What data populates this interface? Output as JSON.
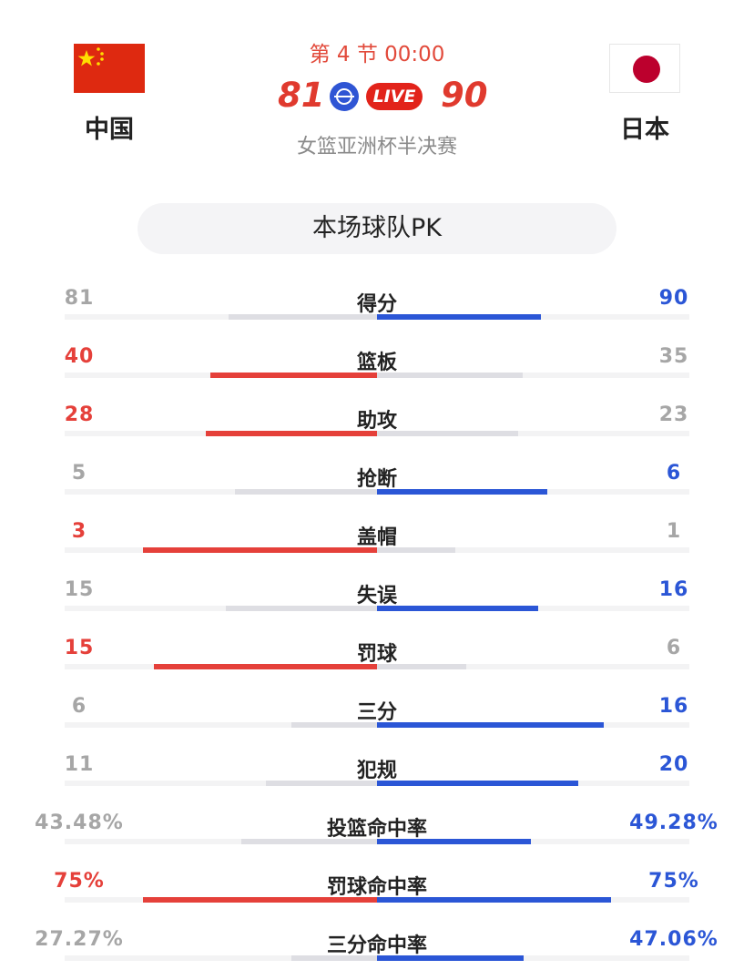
{
  "header": {
    "period": "第 4 节 00:00",
    "subtitle": "女篮亚洲杯半决赛",
    "live_label": "LIVE",
    "home": {
      "name": "中国",
      "score": "81",
      "flag_icon": "china-flag-icon"
    },
    "away": {
      "name": "日本",
      "score": "90",
      "flag_icon": "japan-flag-icon"
    }
  },
  "colors": {
    "home_win": "#e5403a",
    "away_win": "#2b56d6",
    "neutral": "#a6a6a6",
    "live_red": "#e2231a"
  },
  "pk_title": "本场球队PK",
  "stats": [
    {
      "label": "得分",
      "home": "81",
      "away": "90",
      "home_ratio": 0.474,
      "away_ratio": 0.526,
      "winner": "away"
    },
    {
      "label": "篮板",
      "home": "40",
      "away": "35",
      "home_ratio": 0.533,
      "away_ratio": 0.467,
      "winner": "home"
    },
    {
      "label": "助攻",
      "home": "28",
      "away": "23",
      "home_ratio": 0.549,
      "away_ratio": 0.451,
      "winner": "home"
    },
    {
      "label": "抢断",
      "home": "5",
      "away": "6",
      "home_ratio": 0.455,
      "away_ratio": 0.545,
      "winner": "away"
    },
    {
      "label": "盖帽",
      "home": "3",
      "away": "1",
      "home_ratio": 0.75,
      "away_ratio": 0.25,
      "winner": "home"
    },
    {
      "label": "失误",
      "home": "15",
      "away": "16",
      "home_ratio": 0.484,
      "away_ratio": 0.516,
      "winner": "away"
    },
    {
      "label": "罚球",
      "home": "15",
      "away": "6",
      "home_ratio": 0.714,
      "away_ratio": 0.286,
      "winner": "home"
    },
    {
      "label": "三分",
      "home": "6",
      "away": "16",
      "home_ratio": 0.273,
      "away_ratio": 0.727,
      "winner": "away"
    },
    {
      "label": "犯规",
      "home": "11",
      "away": "20",
      "home_ratio": 0.355,
      "away_ratio": 0.645,
      "winner": "away"
    },
    {
      "label": "投篮命中率",
      "home": "43.48%",
      "away": "49.28%",
      "home_ratio": 0.4348,
      "away_ratio": 0.4928,
      "winner": "away"
    },
    {
      "label": "罚球命中率",
      "home": "75%",
      "away": "75%",
      "home_ratio": 0.75,
      "away_ratio": 0.75,
      "winner": "both"
    },
    {
      "label": "三分命中率",
      "home": "27.27%",
      "away": "47.06%",
      "home_ratio": 0.2727,
      "away_ratio": 0.4706,
      "winner": "away"
    }
  ]
}
